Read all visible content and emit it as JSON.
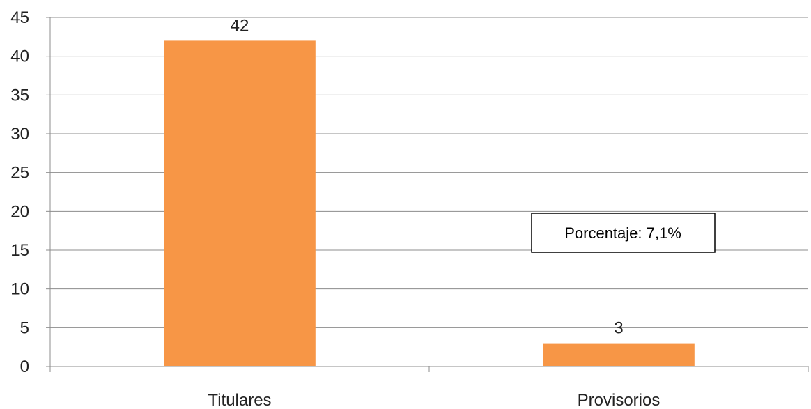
{
  "chart_data": {
    "type": "bar",
    "categories": [
      "Titulares",
      "Provisorios"
    ],
    "values": [
      42,
      3
    ],
    "ylim": [
      0,
      45
    ],
    "yticks": [
      0,
      5,
      10,
      15,
      20,
      25,
      30,
      35,
      40,
      45
    ],
    "grid": true,
    "bar_color": "#F79646",
    "data_labels": [
      "42",
      "3"
    ],
    "annotation": "Porcentaje: 7,1%"
  }
}
